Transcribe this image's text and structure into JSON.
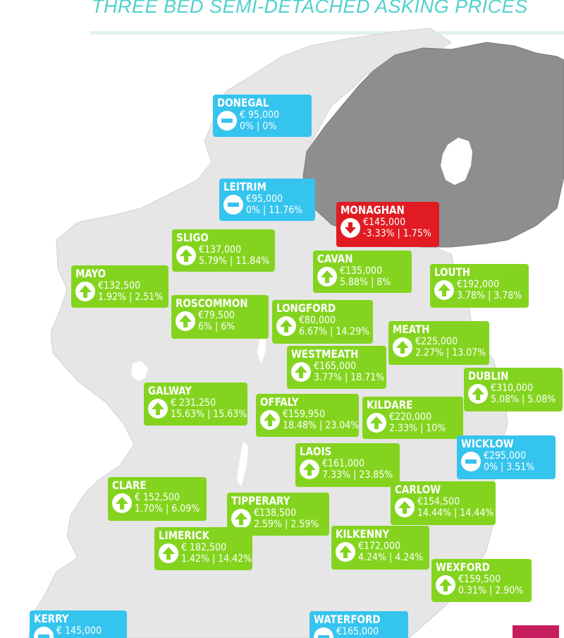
{
  "title": "THREE BED SEMI-DETACHED ASKING PRICES",
  "colors": {
    "rise": "#84d41f",
    "no_change": "#35c4ee",
    "fall": "#e11b22",
    "republic_land": "#e6e6e6",
    "northern_ireland": "#8e8e8e",
    "title": "#4fd1cc"
  },
  "counties": [
    {
      "name": "DONEGAL",
      "price": "€ 95,000",
      "change": "0% | 0%",
      "trend": "no-change"
    },
    {
      "name": "LEITRIM",
      "price": "€95,000",
      "change": "0% | 11.76%",
      "trend": "no-change"
    },
    {
      "name": "MONAGHAN",
      "price": "€145,000",
      "change": "-3.33% | 1.75%",
      "trend": "down"
    },
    {
      "name": "SLIGO",
      "price": "€137,000",
      "change": "5.79% | 11.84%",
      "trend": "up"
    },
    {
      "name": "CAVAN",
      "price": "€135,000",
      "change": "5.88% | 8%",
      "trend": "up"
    },
    {
      "name": "MAYO",
      "price": "€132,500",
      "change": "1.92% | 2.51%",
      "trend": "up"
    },
    {
      "name": "LOUTH",
      "price": "€192,000",
      "change": "3.78% | 3.78%",
      "trend": "up"
    },
    {
      "name": "ROSCOMMON",
      "price": "€79,500",
      "change": "6% | 6%",
      "trend": "up"
    },
    {
      "name": "LONGFORD",
      "price": "€80,000",
      "change": "6.67% | 14.29%",
      "trend": "up"
    },
    {
      "name": "MEATH",
      "price": "€225,000",
      "change": "2.27% | 13.07%",
      "trend": "up"
    },
    {
      "name": "WESTMEATH",
      "price": "€165,000",
      "change": "3.77% | 18.71%",
      "trend": "up"
    },
    {
      "name": "DUBLIN",
      "price": "€310,000",
      "change": "5.08% | 5.08%",
      "trend": "up"
    },
    {
      "name": "GALWAY",
      "price": "€ 231,250",
      "change": "15.63% | 15.63%",
      "trend": "up"
    },
    {
      "name": "OFFALY",
      "price": "€159,950",
      "change": "18.48% | 23.04%",
      "trend": "up"
    },
    {
      "name": "KILDARE",
      "price": "€220,000",
      "change": "2.33% | 10%",
      "trend": "up"
    },
    {
      "name": "WICKLOW",
      "price": "€295,000",
      "change": "0% | 3.51%",
      "trend": "no-change"
    },
    {
      "name": "LAOIS",
      "price": "€161,000",
      "change": "7.33% | 23.85%",
      "trend": "up"
    },
    {
      "name": "CLARE",
      "price": "€ 152,500",
      "change": "1.70% | 6.09%",
      "trend": "up"
    },
    {
      "name": "TIPPERARY",
      "price": "€138,500",
      "change": "2.59% | 2.59%",
      "trend": "up"
    },
    {
      "name": "CARLOW",
      "price": "€154,500",
      "change": "14.44% | 14.44%",
      "trend": "up"
    },
    {
      "name": "LIMERICK",
      "price": "€ 182,500",
      "change": "1.42% | 14.42%",
      "trend": "up"
    },
    {
      "name": "KILKENNY",
      "price": "€172,000",
      "change": "4.24% | 4.24%",
      "trend": "up"
    },
    {
      "name": "WEXFORD",
      "price": "€159,500",
      "change": "0.31% | 2.90%",
      "trend": "up"
    },
    {
      "name": "KERRY",
      "price": "€ 145,000",
      "change": "",
      "trend": "no-change"
    },
    {
      "name": "WATERFORD",
      "price": "€165,000",
      "change": "",
      "trend": "no-change"
    }
  ]
}
